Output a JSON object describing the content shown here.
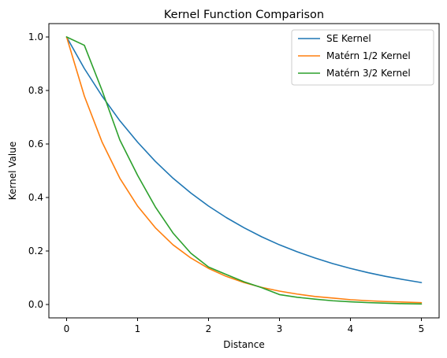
{
  "chart_data": {
    "type": "line",
    "title": "Kernel Function Comparison",
    "xlabel": "Distance",
    "ylabel": "Kernel Value",
    "xlim": [
      -0.25,
      5.25
    ],
    "ylim": [
      -0.05,
      1.05
    ],
    "xticks": [
      0,
      1,
      2,
      3,
      4,
      5
    ],
    "xtick_labels": [
      "0",
      "1",
      "2",
      "3",
      "4",
      "5"
    ],
    "yticks": [
      0.0,
      0.2,
      0.4,
      0.6,
      0.8,
      1.0
    ],
    "ytick_labels": [
      "0.0",
      "0.2",
      "0.4",
      "0.6",
      "0.8",
      "1.0"
    ],
    "grid": false,
    "legend_position": "top-right",
    "series": [
      {
        "name": "SE Kernel",
        "color": "#1f77b4",
        "x": [
          0,
          0.25,
          0.5,
          0.75,
          1,
          1.25,
          1.5,
          1.75,
          2,
          2.25,
          2.5,
          2.75,
          3,
          3.25,
          3.5,
          3.75,
          4,
          4.25,
          4.5,
          4.75,
          5
        ],
        "values": [
          1.0,
          0.882,
          0.779,
          0.687,
          0.607,
          0.535,
          0.472,
          0.417,
          0.368,
          0.325,
          0.287,
          0.253,
          0.223,
          0.197,
          0.174,
          0.153,
          0.135,
          0.119,
          0.105,
          0.093,
          0.082
        ]
      },
      {
        "name": "Matérn 1/2 Kernel",
        "color": "#ff7f0e",
        "x": [
          0,
          0.25,
          0.5,
          0.75,
          1,
          1.25,
          1.5,
          1.75,
          2,
          2.25,
          2.5,
          2.75,
          3,
          3.25,
          3.5,
          3.75,
          4,
          4.25,
          4.5,
          4.75,
          5
        ],
        "values": [
          1.0,
          0.779,
          0.607,
          0.472,
          0.368,
          0.287,
          0.223,
          0.174,
          0.135,
          0.105,
          0.082,
          0.064,
          0.05,
          0.039,
          0.03,
          0.024,
          0.018,
          0.014,
          0.011,
          0.009,
          0.007
        ]
      },
      {
        "name": "Matérn 3/2 Kernel",
        "color": "#2ca02c",
        "x": [
          0,
          0.25,
          0.5,
          0.75,
          1,
          1.25,
          1.5,
          1.75,
          2,
          2.25,
          2.5,
          2.75,
          3,
          3.25,
          3.5,
          3.75,
          4,
          4.25,
          4.5,
          4.75,
          5
        ],
        "values": [
          1.0,
          0.969,
          0.8,
          0.615,
          0.483,
          0.365,
          0.267,
          0.192,
          0.14,
          0.112,
          0.085,
          0.063,
          0.037,
          0.027,
          0.02,
          0.014,
          0.01,
          0.007,
          0.005,
          0.003,
          0.002
        ]
      }
    ]
  }
}
